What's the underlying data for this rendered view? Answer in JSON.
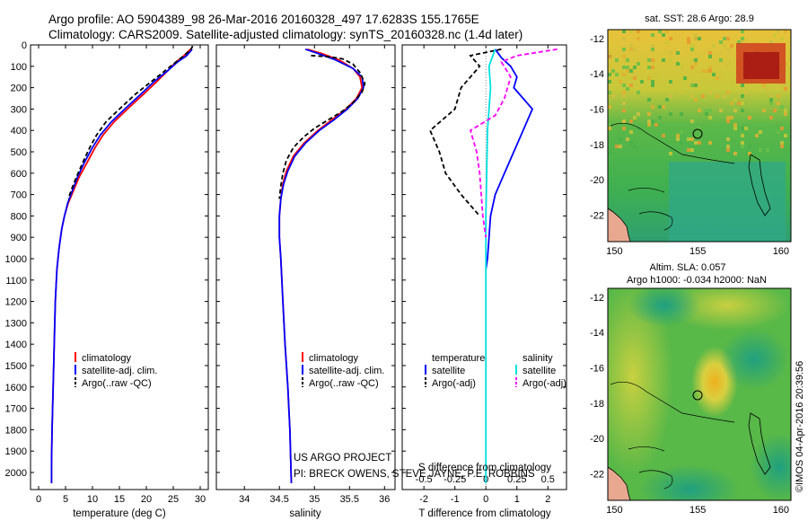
{
  "header": {
    "line1": "Argo profile: AO 5904389_98 26-Mar-2016 20160328_497 17.6283S 155.1765E",
    "line2": "Climatology: CARS2009. Satellite-adjusted climatology: synTS_20160328.nc (1.4d later)"
  },
  "credits": {
    "line1": "US ARGO PROJECT",
    "line2": "PI: BRECK OWENS, STEVE JAYNE, P.E. ROBBINS",
    "stamp": "©IMOS 04-Apr-2016 20:39:56"
  },
  "colors": {
    "climatology": "#ff0000",
    "satellite": "#0000ff",
    "argo": "#000000",
    "sal_satellite": "#00e0e0",
    "sal_argo": "#ff00ff"
  },
  "chart_data": [
    {
      "id": "temperature",
      "type": "line",
      "xlabel": "temperature (deg C)",
      "ylabel": "",
      "xlim": [
        -1.5,
        31.5
      ],
      "ylim": [
        2080,
        0
      ],
      "xticks": [
        0,
        5,
        10,
        15,
        20,
        25,
        30
      ],
      "yticks": [
        0,
        100,
        200,
        300,
        400,
        500,
        600,
        700,
        800,
        900,
        1000,
        1100,
        1200,
        1300,
        1400,
        1500,
        1600,
        1700,
        1800,
        1900,
        2000
      ],
      "legend": [
        "climatology",
        "satellite-adj. clim.",
        "Argo(..raw -QC)"
      ],
      "series": [
        {
          "name": "climatology",
          "style": "solid-red",
          "points": [
            [
              28.2,
              20
            ],
            [
              27,
              50
            ],
            [
              25.5,
              80
            ],
            [
              24,
              120
            ],
            [
              22,
              170
            ],
            [
              19.5,
              230
            ],
            [
              16.5,
              300
            ],
            [
              14,
              360
            ],
            [
              12,
              420
            ],
            [
              10.5,
              480
            ],
            [
              9,
              550
            ],
            [
              7.5,
              620
            ],
            [
              6.5,
              680
            ],
            [
              5.5,
              740
            ],
            [
              4.8,
              800
            ],
            [
              4.3,
              860
            ],
            [
              3.8,
              950
            ],
            [
              3.4,
              1050
            ],
            [
              3.1,
              1200
            ],
            [
              2.9,
              1400
            ],
            [
              2.7,
              1600
            ],
            [
              2.5,
              1800
            ],
            [
              2.4,
              1950
            ],
            [
              2.4,
              2050
            ]
          ]
        },
        {
          "name": "satellite-adj. clim.",
          "style": "solid-blue",
          "points": [
            [
              28.5,
              20
            ],
            [
              27.5,
              50
            ],
            [
              25.8,
              80
            ],
            [
              24,
              120
            ],
            [
              21.5,
              170
            ],
            [
              19,
              230
            ],
            [
              16,
              300
            ],
            [
              13.5,
              360
            ],
            [
              11.5,
              420
            ],
            [
              10,
              480
            ],
            [
              8.5,
              550
            ],
            [
              7.2,
              620
            ],
            [
              6.3,
              680
            ],
            [
              5.4,
              740
            ],
            [
              4.8,
              800
            ],
            [
              4.3,
              860
            ],
            [
              3.8,
              950
            ],
            [
              3.4,
              1050
            ],
            [
              3.1,
              1200
            ],
            [
              2.9,
              1400
            ],
            [
              2.7,
              1600
            ],
            [
              2.5,
              1800
            ],
            [
              2.4,
              1950
            ],
            [
              2.4,
              2050
            ]
          ]
        },
        {
          "name": "Argo(..raw -QC)",
          "style": "dash-black",
          "points": [
            [
              28.6,
              5
            ],
            [
              28.3,
              20
            ],
            [
              27,
              50
            ],
            [
              25.5,
              80
            ],
            [
              23.5,
              120
            ],
            [
              21,
              170
            ],
            [
              18,
              230
            ],
            [
              15,
              300
            ],
            [
              12.5,
              360
            ],
            [
              10.8,
              420
            ],
            [
              9.5,
              480
            ],
            [
              8.2,
              550
            ],
            [
              7,
              620
            ],
            [
              6.2,
              670
            ],
            [
              5.5,
              720
            ]
          ]
        }
      ]
    },
    {
      "id": "salinity",
      "type": "line",
      "xlabel": "salinity",
      "ylabel": "",
      "xlim": [
        33.6,
        36.15
      ],
      "ylim": [
        2080,
        0
      ],
      "xticks": [
        34,
        34.5,
        35,
        35.5,
        36
      ],
      "legend": [
        "climatology",
        "satellite-adj. clim.",
        "Argo(..raw -QC)"
      ],
      "series": [
        {
          "name": "climatology",
          "style": "solid-red",
          "points": [
            [
              34.9,
              20
            ],
            [
              35.1,
              40
            ],
            [
              35.35,
              70
            ],
            [
              35.55,
              110
            ],
            [
              35.65,
              150
            ],
            [
              35.68,
              200
            ],
            [
              35.6,
              250
            ],
            [
              35.45,
              300
            ],
            [
              35.25,
              350
            ],
            [
              35.05,
              400
            ],
            [
              34.85,
              460
            ],
            [
              34.7,
              520
            ],
            [
              34.6,
              590
            ],
            [
              34.55,
              650
            ],
            [
              34.52,
              720
            ],
            [
              34.5,
              800
            ],
            [
              34.5,
              900
            ],
            [
              34.52,
              1000
            ],
            [
              34.55,
              1200
            ],
            [
              34.58,
              1400
            ],
            [
              34.62,
              1600
            ],
            [
              34.65,
              1800
            ],
            [
              34.67,
              2050
            ]
          ]
        },
        {
          "name": "satellite-adj. clim.",
          "style": "solid-blue",
          "points": [
            [
              34.87,
              20
            ],
            [
              35.05,
              40
            ],
            [
              35.3,
              70
            ],
            [
              35.55,
              110
            ],
            [
              35.68,
              150
            ],
            [
              35.7,
              200
            ],
            [
              35.62,
              250
            ],
            [
              35.47,
              300
            ],
            [
              35.28,
              350
            ],
            [
              35.07,
              400
            ],
            [
              34.87,
              460
            ],
            [
              34.72,
              520
            ],
            [
              34.62,
              590
            ],
            [
              34.56,
              650
            ],
            [
              34.52,
              720
            ],
            [
              34.5,
              800
            ],
            [
              34.5,
              900
            ],
            [
              34.52,
              1000
            ],
            [
              34.55,
              1200
            ],
            [
              34.58,
              1400
            ],
            [
              34.62,
              1600
            ],
            [
              34.65,
              1800
            ],
            [
              34.67,
              2050
            ]
          ]
        },
        {
          "name": "Argo(..raw -QC)",
          "style": "dash-black",
          "points": [
            [
              34.95,
              50
            ],
            [
              35.2,
              55
            ],
            [
              35.4,
              65
            ],
            [
              35.55,
              90
            ],
            [
              35.65,
              130
            ],
            [
              35.72,
              180
            ],
            [
              35.68,
              220
            ],
            [
              35.55,
              270
            ],
            [
              35.4,
              310
            ],
            [
              35.2,
              350
            ],
            [
              35.0,
              390
            ],
            [
              34.85,
              430
            ],
            [
              34.7,
              480
            ],
            [
              34.6,
              540
            ],
            [
              34.55,
              600
            ],
            [
              34.52,
              660
            ],
            [
              34.5,
              720
            ]
          ]
        }
      ]
    },
    {
      "id": "difference",
      "type": "line",
      "xlabel": "T difference from climatology",
      "xlabel_top": "S difference from climatology",
      "xlim": [
        -2.7,
        2.6
      ],
      "ylim": [
        2080,
        0
      ],
      "xticks": [
        -2,
        -1,
        0,
        1,
        2
      ],
      "xticks_top_values": [
        -0.5,
        -0.25,
        0,
        0.25,
        0.5
      ],
      "xticks_top_labels": [
        "-0.5",
        "-0.25",
        "0",
        "0.25",
        "0.5"
      ],
      "legend_t_title": "temperature",
      "legend_s_title": "salinity",
      "legend_items": [
        "satellite",
        "Argo(-adj)"
      ],
      "series": [
        {
          "name": "temperature satellite",
          "style": "solid-blue",
          "points": [
            [
              0.3,
              20
            ],
            [
              0.5,
              60
            ],
            [
              0.8,
              100
            ],
            [
              1.0,
              150
            ],
            [
              0.9,
              200
            ],
            [
              1.5,
              300
            ],
            [
              1.2,
              400
            ],
            [
              0.9,
              500
            ],
            [
              0.6,
              600
            ],
            [
              0.3,
              700
            ],
            [
              0.15,
              800
            ],
            [
              0.1,
              900
            ],
            [
              0.05,
              1000
            ],
            [
              0,
              1050
            ]
          ]
        },
        {
          "name": "temperature Argo(-adj)",
          "style": "dash-black",
          "points": [
            [
              0.5,
              20
            ],
            [
              -0.5,
              50
            ],
            [
              -0.2,
              100
            ],
            [
              -0.8,
              200
            ],
            [
              -1.0,
              300
            ],
            [
              -1.8,
              400
            ],
            [
              -1.5,
              500
            ],
            [
              -1.3,
              600
            ],
            [
              -0.8,
              700
            ],
            [
              -0.2,
              800
            ]
          ]
        },
        {
          "name": "salinity satellite",
          "style": "solid-cyan",
          "points": [
            [
              0.3,
              20
            ],
            [
              0.2,
              60
            ],
            [
              0.1,
              100
            ],
            [
              0.15,
              200
            ],
            [
              0.05,
              400
            ],
            [
              0,
              800
            ],
            [
              0,
              2050
            ]
          ]
        },
        {
          "name": "salinity Argo(-adj)",
          "style": "dash-magenta",
          "points": [
            [
              2.3,
              20
            ],
            [
              1.0,
              50
            ],
            [
              0.5,
              80
            ],
            [
              0.8,
              150
            ],
            [
              0.6,
              250
            ],
            [
              0.3,
              330
            ],
            [
              -0.5,
              400
            ],
            [
              -0.3,
              500
            ],
            [
              -0.2,
              600
            ],
            [
              -0.1,
              800
            ],
            [
              0,
              900
            ]
          ]
        }
      ]
    },
    {
      "id": "sst_map",
      "type": "heatmap",
      "title": "sat. SST: 28.6 Argo: 28.9",
      "xlim": [
        149.6,
        160.6
      ],
      "ylim": [
        -23.5,
        -11.5
      ],
      "xticks": [
        150,
        155,
        160
      ],
      "yticks": [
        -12,
        -14,
        -16,
        -18,
        -20,
        -22
      ],
      "marker": [
        155.18,
        -17.63
      ]
    },
    {
      "id": "sla_map",
      "type": "heatmap",
      "title_line1": "Altim. SLA: 0.057",
      "title_line2": "Argo h1000: -0.034 h2000: NaN",
      "xlim": [
        149.6,
        160.6
      ],
      "ylim": [
        -23.5,
        -11.5
      ],
      "xticks": [
        150,
        155,
        160
      ],
      "yticks": [
        -12,
        -14,
        -16,
        -18,
        -20,
        -22
      ],
      "marker": [
        155.18,
        -17.63
      ]
    }
  ]
}
